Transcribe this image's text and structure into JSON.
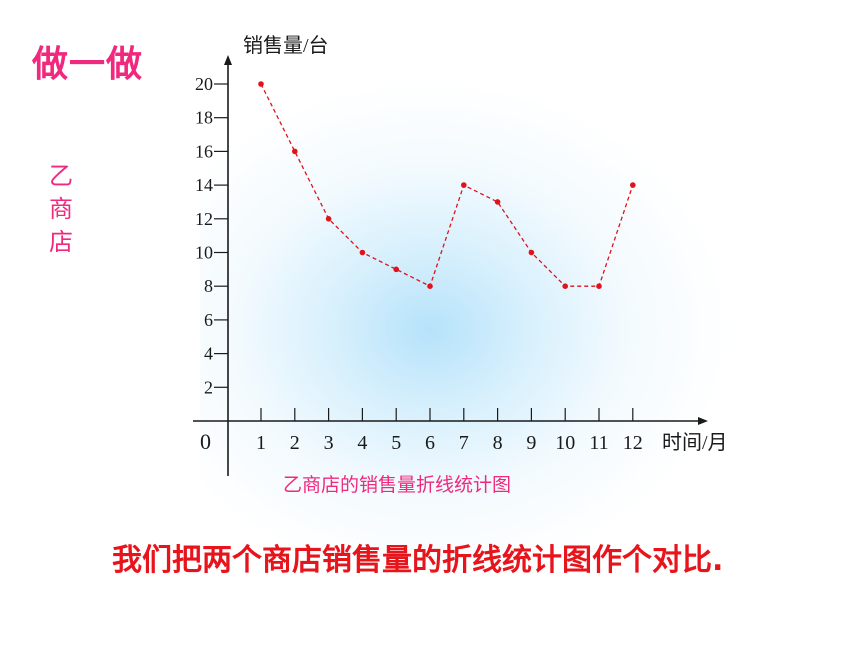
{
  "heading": "做一做",
  "side_label": [
    "乙",
    "商",
    "店"
  ],
  "bottom_note": "我们把两个商店销售量的折线统计图作个对比.",
  "colors": {
    "accent": "#f0297e",
    "note": "#e8141c",
    "series": "#e0121a",
    "axis": "#1a1a1a"
  },
  "chart_data": {
    "type": "line",
    "title": "乙商店的销售量折线统计图",
    "xlabel": "时间/月",
    "ylabel": "销售量/台",
    "origin_label": "0",
    "x": [
      "1",
      "2",
      "3",
      "4",
      "5",
      "6",
      "7",
      "8",
      "9",
      "10",
      "11",
      "12"
    ],
    "yticks": [
      2,
      4,
      6,
      8,
      10,
      12,
      14,
      16,
      18,
      20
    ],
    "ylim": [
      0,
      20
    ],
    "series": [
      {
        "values": [
          20,
          16,
          12,
          10,
          9,
          8,
          14,
          13,
          10,
          8,
          8,
          14
        ]
      }
    ],
    "line_style": "dashed",
    "grid": false
  }
}
